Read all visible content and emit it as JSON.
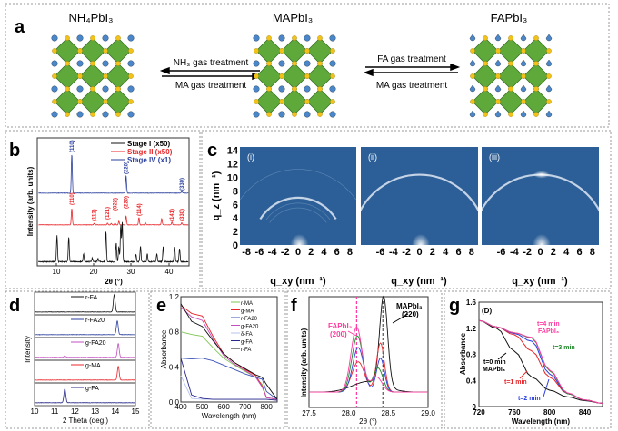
{
  "panel_labels": [
    "a",
    "b",
    "c",
    "d",
    "e",
    "f",
    "g"
  ],
  "panel_a": {
    "compounds": [
      "NH₄PbI₃",
      "MAPbI₃",
      "FAPbI₃"
    ],
    "arrows": {
      "left_top": "NH₃ gas treatment",
      "left_bottom": "MA gas treatment",
      "right_top": "FA gas treatment",
      "right_bottom": "MA gas treatment"
    },
    "colors": {
      "octahedra": "#5fa83a",
      "iodide": "#f2c21b",
      "cation": "#4a86c8"
    }
  },
  "chart_data": [
    {
      "id": "b",
      "type": "line",
      "xlabel": "2θ (°)",
      "ylabel": "Intensity (arb. units)",
      "xlim": [
        5,
        45
      ],
      "xticks": [
        "10",
        "20",
        "30",
        "40"
      ],
      "legend": [
        "Stage I (x50)",
        "Stage II (x50)",
        "Stage IV (x1)"
      ],
      "legend_position": "top-right",
      "series": [
        {
          "name": "Stage IV (x1)",
          "color": "#2a3f9d",
          "peaks": [
            [
              14.1,
              1.0
            ],
            [
              28.4,
              0.45
            ],
            [
              43.1,
              0.05
            ]
          ]
        },
        {
          "name": "Stage II (x50)",
          "color": "#e8262a",
          "peaks": [
            [
              14.1,
              0.45
            ],
            [
              20.0,
              0.04
            ],
            [
              23.5,
              0.05
            ],
            [
              24.5,
              0.04
            ],
            [
              25.5,
              0.05
            ],
            [
              26.5,
              0.1
            ],
            [
              28.4,
              0.25
            ],
            [
              31.8,
              0.2
            ],
            [
              33.5,
              0.06
            ],
            [
              37.8,
              0.18
            ],
            [
              40.5,
              0.08
            ],
            [
              43.1,
              0.06
            ]
          ]
        },
        {
          "name": "Stage I (x50)",
          "color": "#111111",
          "peaks": [
            [
              10.2,
              0.7
            ],
            [
              13.3,
              0.65
            ],
            [
              17.2,
              0.2
            ],
            [
              19.5,
              0.1
            ],
            [
              21,
              0.1
            ],
            [
              23.1,
              0.8
            ],
            [
              25.8,
              0.5
            ],
            [
              26.5,
              0.4
            ],
            [
              27.0,
              0.95
            ],
            [
              27.4,
              1.05
            ],
            [
              31.0,
              0.2
            ],
            [
              32.2,
              0.4
            ],
            [
              34,
              0.2
            ],
            [
              36.5,
              0.2
            ],
            [
              38.2,
              0.4
            ],
            [
              41.2,
              0.4
            ],
            [
              42.5,
              0.35
            ]
          ]
        }
      ],
      "annotations": {
        "stage_iv": [
          "(110)",
          "(220)",
          "(330)"
        ],
        "stage_ii": [
          "(110)",
          "(112)",
          "(121)",
          "(022)",
          "(220)",
          "(114)",
          "(141)",
          "(330)"
        ]
      }
    },
    {
      "id": "c",
      "type": "heatmap",
      "xlabel": "q_xy (nm⁻¹)",
      "ylabel": "q_z (nm⁻¹)",
      "ylim": [
        0,
        14.5
      ],
      "xlim": [
        -9,
        9
      ],
      "yticks": [
        "0",
        "2",
        "4",
        "6",
        "8",
        "10",
        "12",
        "14"
      ],
      "xticks_first": [
        "-8",
        "-6",
        "-4",
        "-2",
        "0",
        "2",
        "4",
        "6",
        "8"
      ],
      "xticks_other": [
        "-6",
        "-4",
        "-2",
        "0",
        "2",
        "4",
        "6",
        "8"
      ],
      "subpanels": [
        {
          "label": "(i)",
          "ring_radius": 7.0,
          "spot": false
        },
        {
          "label": "(ii)",
          "ring_radius": 10.4,
          "spot": false
        },
        {
          "label": "(iii)",
          "ring_radius": 10.4,
          "spot": true
        }
      ],
      "background_color": "#2c5f97"
    },
    {
      "id": "d",
      "type": "line",
      "xlabel": "2 Theta (deg.)",
      "ylabel": "Intensity",
      "xlim": [
        10,
        15
      ],
      "xticks": [
        "10",
        "11",
        "12",
        "13",
        "14",
        "15"
      ],
      "series": [
        {
          "name": "r-FA",
          "color": "#111111",
          "peaks": [
            [
              13.95,
              1.0
            ]
          ]
        },
        {
          "name": "r-FA20",
          "color": "#2a3f9d",
          "peaks": [
            [
              14.1,
              0.8
            ]
          ]
        },
        {
          "name": "g-FA20",
          "color": "#c34fc0",
          "peaks": [
            [
              14.15,
              0.8
            ],
            [
              11.5,
              0.08
            ]
          ]
        },
        {
          "name": "g-MA",
          "color": "#e8262a",
          "peaks": [
            [
              14.15,
              0.8
            ]
          ]
        },
        {
          "name": "g-FA",
          "color": "#27288a",
          "peaks": [
            [
              11.5,
              0.8
            ]
          ]
        }
      ]
    },
    {
      "id": "e",
      "type": "line",
      "xlabel": "Wavelength (nm)",
      "ylabel": "Absorbance",
      "xlim": [
        400,
        850
      ],
      "ylim": [
        0,
        1.2
      ],
      "xticks": [
        "400",
        "500",
        "600",
        "700",
        "800"
      ],
      "yticks": [
        "0.0",
        "0.4",
        "0.8",
        "1.2"
      ],
      "x": [
        400,
        450,
        500,
        550,
        600,
        650,
        700,
        750,
        780,
        800,
        850
      ],
      "series": [
        {
          "name": "r-MA",
          "color": "#7dc652",
          "values": [
            0.8,
            0.77,
            0.75,
            0.62,
            0.5,
            0.42,
            0.35,
            0.28,
            0.2,
            0.05,
            0.03
          ]
        },
        {
          "name": "g-MA",
          "color": "#e8262a",
          "values": [
            1.1,
            1.01,
            0.98,
            0.75,
            0.55,
            0.45,
            0.37,
            0.3,
            0.18,
            0.05,
            0.03
          ]
        },
        {
          "name": "r-FA20",
          "color": "#3b53b8",
          "values": [
            0.5,
            0.49,
            0.5,
            0.47,
            0.42,
            0.37,
            0.32,
            0.28,
            0.26,
            0.12,
            0.03
          ]
        },
        {
          "name": "g-FA20",
          "color": "#c34fc0",
          "values": [
            1.08,
            0.97,
            0.93,
            0.72,
            0.53,
            0.43,
            0.36,
            0.28,
            0.17,
            0.05,
            0.03
          ]
        },
        {
          "name": "δ-FA",
          "color": "#b9c3ee",
          "values": [
            0.3,
            0.04,
            0.03,
            0.03,
            0.03,
            0.03,
            0.03,
            0.03,
            0.03,
            0.03,
            0.02
          ]
        },
        {
          "name": "g-FA",
          "color": "#27288a",
          "values": [
            0.5,
            0.08,
            0.04,
            0.03,
            0.03,
            0.03,
            0.03,
            0.03,
            0.03,
            0.03,
            0.02
          ]
        },
        {
          "name": "r-FA",
          "color": "#111111",
          "values": [
            1.12,
            0.92,
            0.86,
            0.7,
            0.55,
            0.45,
            0.38,
            0.31,
            0.28,
            0.2,
            0.03
          ]
        }
      ]
    },
    {
      "id": "f",
      "type": "line",
      "xlabel": "2θ (°)",
      "ylabel": "Intensity (arb. units)",
      "xlim": [
        27.5,
        29.0
      ],
      "xticks": [
        "27.5",
        "28.0",
        "28.5",
        "29.0"
      ],
      "annotations": {
        "mapbi3": "MAPbI₃",
        "mapbi3_peak": "(220)",
        "fapbi3": "FAPbI₃",
        "fapbi3_peak": "(200)"
      },
      "reference_lines": [
        28.1,
        28.43
      ],
      "series": [
        {
          "name": "MAPbI3",
          "color": "#111111",
          "peaks": [
            [
              28.44,
              1.0,
              0.05
            ],
            [
              28.25,
              0.12,
              0.2
            ]
          ]
        },
        {
          "name": "t1",
          "color": "#e8262a",
          "peaks": [
            [
              28.12,
              0.34,
              0.08
            ],
            [
              28.4,
              0.55,
              0.05
            ]
          ]
        },
        {
          "name": "t2",
          "color": "#2b3fe0",
          "peaks": [
            [
              28.12,
              0.5,
              0.07
            ],
            [
              28.4,
              0.38,
              0.05
            ]
          ]
        },
        {
          "name": "t3",
          "color": "#1f8a2a",
          "peaks": [
            [
              28.11,
              0.63,
              0.07
            ],
            [
              28.37,
              0.27,
              0.06
            ]
          ]
        },
        {
          "name": "FAPbI3",
          "color": "#ff3aa0",
          "peaks": [
            [
              28.1,
              0.73,
              0.07
            ],
            [
              28.35,
              0.17,
              0.07
            ]
          ]
        }
      ]
    },
    {
      "id": "g",
      "type": "line",
      "title": "(D)",
      "xlabel": "Wavelength (nm)",
      "ylabel": "Absorbance",
      "xlim": [
        720,
        860
      ],
      "ylim": [
        0,
        1.6
      ],
      "xticks": [
        "720",
        "760",
        "800",
        "840"
      ],
      "yticks": [
        "0",
        "0.4",
        "0.8",
        "1.2",
        "1.6"
      ],
      "x": [
        720,
        740,
        760,
        780,
        800,
        820,
        840,
        860
      ],
      "series": [
        {
          "name": "t=0 min MAPbI₃",
          "color": "#111111",
          "values": [
            1.32,
            1.2,
            0.85,
            0.45,
            0.25,
            0.15,
            0.09,
            0.05
          ]
        },
        {
          "name": "t=1 min",
          "color": "#e8262a",
          "values": [
            1.32,
            1.22,
            1.1,
            0.85,
            0.45,
            0.2,
            0.1,
            0.05
          ]
        },
        {
          "name": "t=2 min",
          "color": "#2b3fe0",
          "values": [
            1.32,
            1.22,
            1.12,
            1.0,
            0.5,
            0.2,
            0.1,
            0.05
          ]
        },
        {
          "name": "t=3 min",
          "color": "#1f8a2a",
          "values": [
            1.32,
            1.22,
            1.13,
            1.05,
            0.55,
            0.2,
            0.1,
            0.05
          ]
        },
        {
          "name": "t=4 min FAPbI₃",
          "color": "#ff3aa0",
          "values": [
            1.32,
            1.22,
            1.13,
            1.06,
            0.56,
            0.21,
            0.1,
            0.05
          ]
        }
      ],
      "annotations": {
        "t0": "t=0 min",
        "t0b": "MAPbI₃",
        "t1": "t=1 min",
        "t2": "t=2 min",
        "t3": "t=3 min",
        "t4": "t=4 min",
        "t4b": "FAPbI₃"
      }
    }
  ]
}
